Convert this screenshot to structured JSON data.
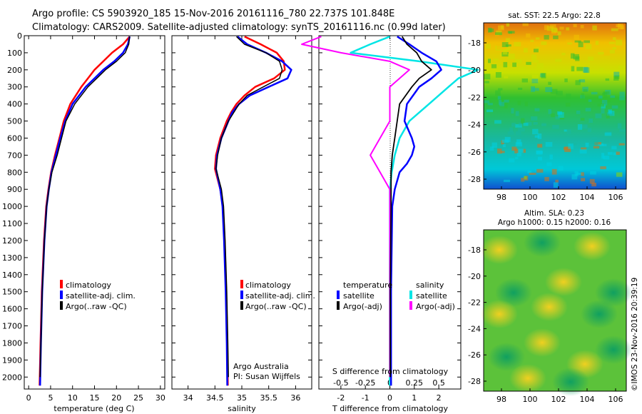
{
  "header": {
    "line1": "Argo profile: CS 5903920_185 15-Nov-2016 20161116_780 22.737S 101.848E",
    "line2": "Climatology: CARS2009. Satellite-adjusted climatology: synTS_20161116.nc (0.99d later)"
  },
  "colors": {
    "climatology": "#ff0000",
    "satellite": "#0000ff",
    "argo": "#000000",
    "sat_salinity": "#00e5e5",
    "argo_salinity": "#ff00ff"
  },
  "chart_data": [
    {
      "type": "line",
      "panel": "temperature",
      "xlabel": "temperature (deg C)",
      "xlim": [
        -1,
        31
      ],
      "xticks": [
        "0",
        "5",
        "10",
        "15",
        "20",
        "25",
        "30"
      ],
      "ylim": [
        2070,
        0
      ],
      "yticks": [
        "0",
        "100",
        "200",
        "300",
        "400",
        "500",
        "600",
        "700",
        "800",
        "900",
        "1000",
        "1100",
        "1200",
        "1300",
        "1400",
        "1500",
        "1600",
        "1700",
        "1800",
        "1900",
        "2000"
      ],
      "legend": [
        "climatology",
        "satellite-adj. clim.",
        "Argo(..raw -QC)"
      ],
      "series": [
        {
          "name": "climatology",
          "depth": [
            5,
            50,
            100,
            150,
            200,
            250,
            300,
            400,
            500,
            600,
            700,
            800,
            900,
            1000,
            1200,
            1500,
            1800,
            2050
          ],
          "values": [
            23,
            21.5,
            19,
            17,
            15,
            13.5,
            12,
            9.5,
            8,
            7,
            6,
            5.1,
            4.5,
            4,
            3.5,
            3,
            2.7,
            2.5
          ]
        },
        {
          "name": "satellite-adj. clim.",
          "depth": [
            5,
            50,
            100,
            150,
            200,
            250,
            300,
            400,
            500,
            600,
            700,
            800,
            900,
            1000,
            1200,
            1500,
            1800,
            2050
          ],
          "values": [
            23,
            22.6,
            21.5,
            19.5,
            17,
            15,
            13,
            10,
            8.3,
            7.2,
            6.2,
            5.2,
            4.6,
            4.1,
            3.6,
            3.1,
            2.8,
            2.6
          ]
        },
        {
          "name": "Argo(..raw -QC)",
          "depth": [
            5,
            50,
            100,
            150,
            200,
            250,
            300,
            400,
            500,
            600,
            700,
            800,
            900,
            1000,
            1200,
            1500,
            1800,
            2000
          ],
          "values": [
            23,
            22.8,
            22,
            20,
            17.5,
            15.5,
            13.5,
            10.5,
            8.5,
            7.5,
            6.5,
            5.3,
            4.6,
            4.1,
            3.6,
            3.1,
            2.8,
            2.6
          ]
        }
      ]
    },
    {
      "type": "line",
      "panel": "salinity",
      "xlabel": "salinity",
      "xlim": [
        33.7,
        36.3
      ],
      "xticks": [
        "34",
        "34.5",
        "35",
        "35.5",
        "36"
      ],
      "ylim": [
        2070,
        0
      ],
      "legend": [
        "climatology",
        "satellite-adj. clim.",
        "Argo(..raw -QC)"
      ],
      "series": [
        {
          "name": "climatology",
          "depth": [
            5,
            50,
            100,
            150,
            200,
            250,
            300,
            350,
            400,
            450,
            500,
            600,
            700,
            780,
            900,
            1000,
            1200,
            1500,
            1800,
            2050
          ],
          "values": [
            35.05,
            35.35,
            35.65,
            35.78,
            35.8,
            35.6,
            35.25,
            35.05,
            34.9,
            34.8,
            34.72,
            34.6,
            34.52,
            34.5,
            34.6,
            34.65,
            34.68,
            34.71,
            34.73,
            34.74
          ]
        },
        {
          "name": "satellite-adj. clim.",
          "depth": [
            5,
            50,
            100,
            150,
            200,
            250,
            300,
            350,
            400,
            450,
            500,
            600,
            700,
            780,
            900,
            1000,
            1200,
            1500,
            1800,
            2050
          ],
          "values": [
            34.92,
            35.1,
            35.45,
            35.75,
            35.92,
            35.85,
            35.5,
            35.15,
            34.95,
            34.82,
            34.75,
            34.62,
            34.54,
            34.52,
            34.6,
            34.64,
            34.67,
            34.7,
            34.72,
            34.73
          ]
        },
        {
          "name": "Argo(..raw -QC)",
          "depth": [
            5,
            50,
            100,
            150,
            200,
            250,
            300,
            350,
            400,
            450,
            500,
            600,
            700,
            780,
            900,
            1000,
            1200,
            1500,
            1800,
            2000
          ],
          "values": [
            34.9,
            35.05,
            35.45,
            35.7,
            35.75,
            35.7,
            35.4,
            35.1,
            34.95,
            34.85,
            34.75,
            34.62,
            34.55,
            34.52,
            34.62,
            34.66,
            34.69,
            34.72,
            34.74,
            34.75
          ]
        }
      ],
      "annotation": [
        "Argo Australia",
        "PI: Susan Wijffels"
      ]
    },
    {
      "type": "line",
      "panel": "difference",
      "xlabel": "T difference from climatology",
      "xlabel_top": "S difference from climatology",
      "xlim": [
        -2.9,
        2.9
      ],
      "xticks": [
        "-2",
        "-1",
        "0",
        "1",
        "2"
      ],
      "xticks_top": [
        "-0.5",
        "-0.25",
        "0",
        "0.25",
        "0.5"
      ],
      "ylim": [
        2070,
        0
      ],
      "legend_titles": [
        "temperature",
        "salinity"
      ],
      "legend": [
        "satellite",
        "Argo(-adj)",
        "satellite",
        "Argo(-adj)"
      ],
      "series": [
        {
          "name": "satellite",
          "depth": [
            5,
            50,
            100,
            150,
            200,
            250,
            300,
            400,
            500,
            600,
            650,
            700,
            750,
            800,
            900,
            1000,
            1500,
            2050
          ],
          "values": [
            0.3,
            0.8,
            1.3,
            1.9,
            2.1,
            1.7,
            1.2,
            0.7,
            0.6,
            0.9,
            1.0,
            0.9,
            0.7,
            0.4,
            0.2,
            0.1,
            0.05,
            0.05
          ]
        },
        {
          "name": "Argo(-adj)",
          "depth": [
            5,
            50,
            100,
            150,
            200,
            250,
            300,
            400,
            500,
            600,
            700,
            800,
            900,
            1000,
            1500,
            2000
          ],
          "values": [
            0.5,
            0.7,
            1.1,
            1.3,
            1.7,
            1.2,
            0.9,
            0.4,
            0.3,
            0.2,
            0.1,
            0.05,
            0.05,
            0.05,
            0.02,
            0.02
          ]
        },
        {
          "name": "satellite",
          "depth": [
            5,
            50,
            100,
            150,
            200,
            250,
            300,
            400,
            500,
            600,
            700,
            800,
            900,
            1000,
            1500,
            2050
          ],
          "values": [
            0.0,
            -0.2,
            -0.4,
            0.3,
            0.9,
            0.7,
            0.6,
            0.4,
            0.2,
            0.1,
            0.05,
            0.02,
            0.0,
            0.0,
            0.0,
            0.0
          ]
        },
        {
          "name": "Argo(-adj)",
          "depth": [
            5,
            50,
            100,
            150,
            200,
            250,
            300,
            400,
            500,
            600,
            700,
            800,
            900,
            1000,
            1500,
            2000
          ],
          "values": [
            -0.7,
            -0.9,
            -0.5,
            0.0,
            0.2,
            0.1,
            0.0,
            0.0,
            0.0,
            -0.1,
            -0.2,
            -0.1,
            0.0,
            0.0,
            0.0,
            0.0
          ]
        }
      ]
    }
  ],
  "maps": {
    "sst": {
      "title": "sat. SST: 22.5  Argo: 22.8",
      "yticks": [
        "-18",
        "-20",
        "-22",
        "-24",
        "-26",
        "-28"
      ],
      "xticks": [
        "98",
        "100",
        "102",
        "104",
        "106"
      ]
    },
    "sla": {
      "title1": "Altim. SLA: 0.23",
      "title2": "Argo h1000: 0.15 h2000: 0.16",
      "yticks": [
        "-18",
        "-20",
        "-22",
        "-24",
        "-26",
        "-28"
      ],
      "xticks": [
        "98",
        "100",
        "102",
        "104",
        "106"
      ]
    },
    "credit": "©IMOS 23-Nov-2016 20:39:19"
  }
}
